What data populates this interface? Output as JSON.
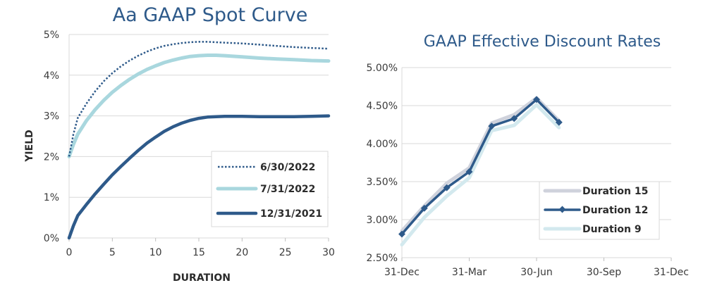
{
  "chart_data": [
    {
      "type": "line",
      "title": "Aa GAAP Spot Curve",
      "xlabel": "DURATION",
      "ylabel": "YIELD",
      "xlim": [
        0,
        30
      ],
      "ylim": [
        0,
        5
      ],
      "xticks": [
        0,
        5,
        10,
        15,
        20,
        25,
        30
      ],
      "xtick_labels": [
        "0",
        "5",
        "10",
        "15",
        "20",
        "25",
        "30"
      ],
      "yticks": [
        0,
        1,
        2,
        3,
        4,
        5
      ],
      "ytick_labels": [
        "0%",
        "1%",
        "2%",
        "3%",
        "4%",
        "5%"
      ],
      "grid": "horizontal",
      "legend": "bottom-right",
      "series": [
        {
          "name": "6/30/2022",
          "color": "#2e5a8a",
          "style": "dotted",
          "x": [
            0,
            0.5,
            1,
            2,
            3,
            4,
            5,
            6,
            7,
            8,
            9,
            10,
            11,
            12,
            13,
            14,
            15,
            16,
            17,
            18,
            20,
            22,
            24,
            26,
            28,
            30
          ],
          "y": [
            2.0,
            2.55,
            2.95,
            3.3,
            3.6,
            3.85,
            4.05,
            4.22,
            4.36,
            4.48,
            4.58,
            4.66,
            4.72,
            4.76,
            4.79,
            4.81,
            4.82,
            4.82,
            4.81,
            4.8,
            4.78,
            4.75,
            4.72,
            4.69,
            4.67,
            4.65
          ]
        },
        {
          "name": "7/31/2022",
          "color": "#a9d7de",
          "style": "solid",
          "x": [
            0,
            0.5,
            1,
            2,
            3,
            4,
            5,
            6,
            7,
            8,
            9,
            10,
            11,
            12,
            13,
            14,
            15,
            16,
            17,
            18,
            20,
            22,
            24,
            26,
            28,
            30
          ],
          "y": [
            2.0,
            2.3,
            2.55,
            2.88,
            3.15,
            3.38,
            3.58,
            3.75,
            3.9,
            4.03,
            4.14,
            4.23,
            4.31,
            4.37,
            4.42,
            4.46,
            4.48,
            4.49,
            4.49,
            4.48,
            4.45,
            4.42,
            4.4,
            4.38,
            4.36,
            4.35
          ]
        },
        {
          "name": "12/31/2021",
          "color": "#2e5a8a",
          "style": "solid",
          "x": [
            0,
            0.5,
            1,
            2,
            3,
            4,
            5,
            6,
            7,
            8,
            9,
            10,
            11,
            12,
            13,
            14,
            15,
            16,
            17,
            18,
            20,
            22,
            24,
            26,
            28,
            30
          ],
          "y": [
            0.0,
            0.3,
            0.55,
            0.82,
            1.08,
            1.32,
            1.55,
            1.76,
            1.96,
            2.15,
            2.33,
            2.48,
            2.62,
            2.73,
            2.82,
            2.89,
            2.94,
            2.97,
            2.98,
            2.99,
            2.99,
            2.98,
            2.98,
            2.98,
            2.99,
            3.0
          ]
        }
      ]
    },
    {
      "type": "line",
      "title": "GAAP Effective Discount Rates",
      "xlabel": "",
      "ylabel": "",
      "x_categories": [
        "31-Dec",
        "31-Mar",
        "30-Jun",
        "30-Sep",
        "31-Dec"
      ],
      "ylim": [
        2.5,
        5.0
      ],
      "yticks": [
        2.5,
        3.0,
        3.5,
        4.0,
        4.5,
        5.0
      ],
      "ytick_labels": [
        "2.50%",
        "3.00%",
        "3.50%",
        "4.00%",
        "4.50%",
        "5.00%"
      ],
      "grid": "horizontal",
      "legend": "bottom-right",
      "series": [
        {
          "name": "Duration 15",
          "color": "#cfd2dc",
          "marker": "none",
          "x_months": [
            0,
            1,
            2,
            3,
            4,
            5,
            6,
            7
          ],
          "y": [
            2.85,
            3.18,
            3.48,
            3.68,
            4.27,
            4.38,
            4.6,
            4.3
          ]
        },
        {
          "name": "Duration 12",
          "color": "#2e5a8a",
          "marker": "diamond",
          "x_months": [
            0,
            1,
            2,
            3,
            4,
            5,
            6,
            7
          ],
          "y": [
            2.81,
            3.15,
            3.42,
            3.63,
            4.23,
            4.33,
            4.58,
            4.28
          ]
        },
        {
          "name": "Duration 9",
          "color": "#d3e9ee",
          "marker": "none",
          "x_months": [
            0,
            1,
            2,
            3,
            4,
            5,
            6,
            7
          ],
          "y": [
            2.67,
            3.03,
            3.31,
            3.55,
            4.17,
            4.24,
            4.51,
            4.21
          ]
        }
      ]
    }
  ]
}
